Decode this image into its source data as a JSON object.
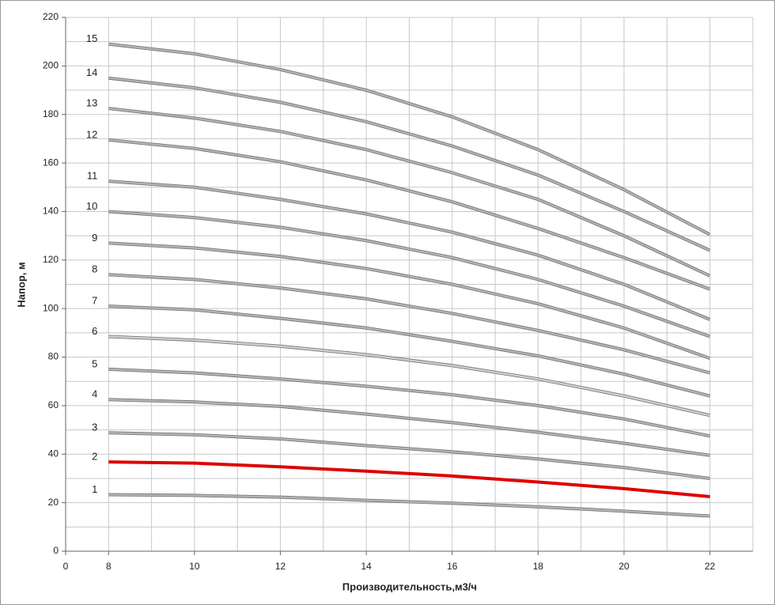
{
  "chart_data": {
    "type": "line",
    "x_label": "Производительность,м3/ч",
    "y_label": "Напор, м",
    "x": [
      8,
      10,
      12,
      14,
      16,
      18,
      20,
      22
    ],
    "xlim": [
      7,
      23
    ],
    "xticks": [
      {
        "value": 7,
        "label": "0"
      },
      8,
      10,
      12,
      14,
      16,
      18,
      20,
      22
    ],
    "x_minor_grid": [
      9,
      11,
      13,
      15,
      17,
      19,
      21,
      23
    ],
    "ylim": [
      0,
      220
    ],
    "yticks": [
      0,
      20,
      40,
      60,
      80,
      100,
      120,
      140,
      160,
      180,
      200,
      220
    ],
    "y_minor_grid": [
      10,
      30,
      50,
      70,
      90,
      110,
      130,
      150,
      170,
      190,
      210
    ],
    "grid": true,
    "series": [
      {
        "name": "1",
        "color": "#b4b4b4",
        "values": [
          23.3,
          23,
          22.3,
          21,
          19.8,
          18.3,
          16.5,
          14.5
        ]
      },
      {
        "name": "2",
        "color": "#e00000",
        "values": [
          36.8,
          36.3,
          34.8,
          33,
          31,
          28.5,
          25.8,
          22.5
        ]
      },
      {
        "name": "3",
        "color": "#b4b4b4",
        "values": [
          48.8,
          48,
          46.3,
          43.5,
          41,
          38,
          34.5,
          30
        ]
      },
      {
        "name": "4",
        "color": "#b4b4b4",
        "values": [
          62.5,
          61.5,
          59.7,
          56.5,
          53,
          49,
          44.5,
          39.5
        ]
      },
      {
        "name": "5",
        "color": "#b4b4b4",
        "values": [
          75,
          73.5,
          71,
          68,
          64.5,
          60,
          54.5,
          47.5
        ]
      },
      {
        "name": "6",
        "color": "#d2d2d2",
        "values": [
          88.5,
          87,
          84.5,
          81,
          76.5,
          71,
          64,
          56
        ]
      },
      {
        "name": "7",
        "color": "#b4b4b4",
        "values": [
          101,
          99.5,
          96,
          92,
          86.5,
          80.5,
          73,
          64
        ]
      },
      {
        "name": "8",
        "color": "#b4b4b4",
        "values": [
          114,
          112,
          108.5,
          104,
          98,
          91,
          83,
          73.5
        ]
      },
      {
        "name": "9",
        "color": "#b4b4b4",
        "values": [
          127,
          125,
          121.5,
          116.5,
          110,
          102,
          92,
          79.5
        ]
      },
      {
        "name": "10",
        "color": "#b4b4b4",
        "values": [
          140,
          137.5,
          133.5,
          128,
          121,
          112,
          101,
          88.5
        ]
      },
      {
        "name": "11",
        "color": "#b4b4b4",
        "values": [
          152.5,
          150,
          145,
          139,
          131.5,
          122,
          110,
          95.5
        ]
      },
      {
        "name": "12",
        "color": "#b4b4b4",
        "values": [
          169.5,
          166,
          160.5,
          153,
          144,
          133,
          121,
          108
        ]
      },
      {
        "name": "13",
        "color": "#b4b4b4",
        "values": [
          182.5,
          178.5,
          173,
          165.5,
          156,
          145,
          130,
          113.5
        ]
      },
      {
        "name": "14",
        "color": "#b4b4b4",
        "values": [
          195,
          191,
          185,
          177,
          167,
          155,
          140,
          124
        ]
      },
      {
        "name": "15",
        "color": "#b4b4b4",
        "values": [
          209,
          205,
          198.5,
          190,
          179,
          165.5,
          149,
          130.5
        ]
      }
    ]
  }
}
